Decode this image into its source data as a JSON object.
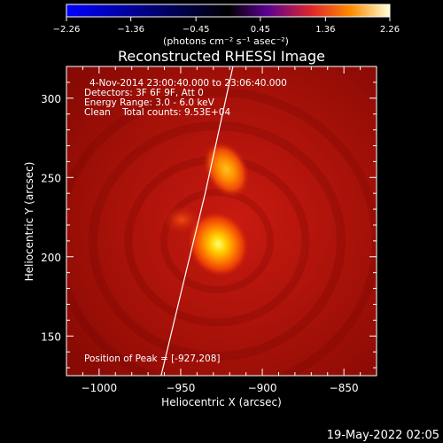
{
  "chart_data": {
    "type": "heatmap",
    "title": "Reconstructed RHESSI Image",
    "xlabel": "Heliocentric X (arcsec)",
    "ylabel": "Heliocentric Y (arcsec)",
    "xlim": [
      -1020,
      -830
    ],
    "ylim": [
      125,
      320
    ],
    "x_ticks": [
      -1000,
      -950,
      -900,
      -850
    ],
    "x_tick_labels": [
      "−1000",
      "−950",
      "−900",
      "−850"
    ],
    "y_ticks": [
      150,
      200,
      250,
      300
    ],
    "y_tick_labels": [
      "150",
      "200",
      "250",
      "300"
    ],
    "colorbar": {
      "ticks": [
        -2.26,
        -1.36,
        -0.45,
        0.45,
        1.36,
        2.26
      ],
      "tick_labels": [
        "−2.26",
        "−1.36",
        "−0.45",
        "0.45",
        "1.36",
        "2.26"
      ],
      "units_label": "(photons cm⁻² s⁻¹ asec⁻²)",
      "colormap": [
        "#0000ff",
        "#000000",
        "#5a0090",
        "#e0282a",
        "#ff8c00",
        "#ffffd8"
      ]
    },
    "sources": [
      {
        "x": -927,
        "y": 208,
        "relative_intensity": 1.0
      },
      {
        "x": -922,
        "y": 255,
        "relative_intensity": 0.72
      }
    ],
    "limb_curve_points": [
      [
        -962,
        125
      ],
      [
        -948,
        185
      ],
      [
        -935,
        240
      ],
      [
        -918,
        320
      ]
    ],
    "annotations": [
      "4-Nov-2014 23:00:40.000 to 23:06:40.000",
      "Detectors: 3F 6F 9F, Att 0",
      "Energy Range: 3.0 - 6.0 keV",
      "Clean    Total counts: 9.53E+04",
      "Position of Peak = [-927,208]"
    ],
    "timestamp": "19-May-2022 02:05"
  }
}
